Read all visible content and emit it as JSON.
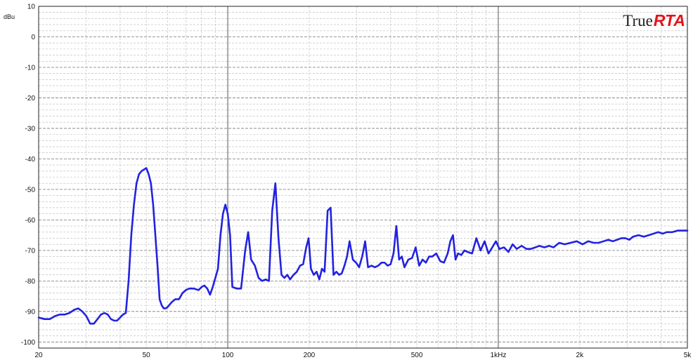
{
  "logo": {
    "part1": "True",
    "part2": "RTA",
    "accent": "#e3151a"
  },
  "chart_data": {
    "type": "line",
    "title": "",
    "xlabel": "",
    "ylabel": "dBu",
    "xscale": "log",
    "xlim": [
      20,
      5000
    ],
    "ylim": [
      -102,
      10
    ],
    "grid": true,
    "x_ticks": [
      {
        "v": 20,
        "label": "20"
      },
      {
        "v": 50,
        "label": "50"
      },
      {
        "v": 100,
        "label": "100"
      },
      {
        "v": 200,
        "label": "200"
      },
      {
        "v": 500,
        "label": "500"
      },
      {
        "v": 1000,
        "label": "1kHz"
      },
      {
        "v": 2000,
        "label": "2k"
      },
      {
        "v": 5000,
        "label": "5k"
      }
    ],
    "y_ticks": [
      10,
      0,
      -10,
      -20,
      -30,
      -40,
      -50,
      -60,
      -70,
      -80,
      -90,
      -100
    ],
    "series_color": "#2222e0",
    "series": [
      {
        "points": [
          [
            20,
            -92
          ],
          [
            21,
            -92.5
          ],
          [
            22,
            -92.5
          ],
          [
            23,
            -91.5
          ],
          [
            24,
            -91
          ],
          [
            25,
            -91
          ],
          [
            26,
            -90.5
          ],
          [
            27,
            -89.5
          ],
          [
            28,
            -89
          ],
          [
            29,
            -90
          ],
          [
            30,
            -91.5
          ],
          [
            31,
            -94
          ],
          [
            32,
            -94
          ],
          [
            33,
            -92.5
          ],
          [
            34,
            -91
          ],
          [
            35,
            -90.5
          ],
          [
            36,
            -91
          ],
          [
            37,
            -92.5
          ],
          [
            38,
            -93
          ],
          [
            39,
            -93
          ],
          [
            40,
            -92
          ],
          [
            41,
            -91
          ],
          [
            42,
            -90.5
          ],
          [
            43,
            -80
          ],
          [
            44,
            -65
          ],
          [
            45,
            -55
          ],
          [
            46,
            -48
          ],
          [
            47,
            -45
          ],
          [
            48,
            -44
          ],
          [
            49,
            -43.5
          ],
          [
            50,
            -43
          ],
          [
            51,
            -45
          ],
          [
            52,
            -48
          ],
          [
            53,
            -55
          ],
          [
            54,
            -65
          ],
          [
            55,
            -75
          ],
          [
            56,
            -86
          ],
          [
            57,
            -88
          ],
          [
            58,
            -89
          ],
          [
            59,
            -89
          ],
          [
            60,
            -88.5
          ],
          [
            62,
            -87
          ],
          [
            64,
            -86
          ],
          [
            66,
            -86
          ],
          [
            68,
            -84
          ],
          [
            70,
            -83
          ],
          [
            72,
            -82.5
          ],
          [
            75,
            -82.5
          ],
          [
            78,
            -83
          ],
          [
            80,
            -82
          ],
          [
            82,
            -81.5
          ],
          [
            84,
            -82.5
          ],
          [
            86,
            -84.5
          ],
          [
            88,
            -82
          ],
          [
            90,
            -79
          ],
          [
            92,
            -76
          ],
          [
            94,
            -65
          ],
          [
            96,
            -58
          ],
          [
            98,
            -55
          ],
          [
            100,
            -58
          ],
          [
            102,
            -65
          ],
          [
            104,
            -82
          ],
          [
            108,
            -82.5
          ],
          [
            112,
            -82.5
          ],
          [
            116,
            -70
          ],
          [
            119,
            -64
          ],
          [
            122,
            -73
          ],
          [
            126,
            -75
          ],
          [
            130,
            -79
          ],
          [
            134,
            -80
          ],
          [
            138,
            -79.5
          ],
          [
            142,
            -80
          ],
          [
            146,
            -57
          ],
          [
            150,
            -48
          ],
          [
            154,
            -66
          ],
          [
            158,
            -78
          ],
          [
            162,
            -79
          ],
          [
            166,
            -78
          ],
          [
            170,
            -79.5
          ],
          [
            175,
            -78
          ],
          [
            180,
            -77
          ],
          [
            185,
            -75
          ],
          [
            190,
            -74.5
          ],
          [
            195,
            -69
          ],
          [
            199,
            -66
          ],
          [
            203,
            -76
          ],
          [
            208,
            -78
          ],
          [
            213,
            -77
          ],
          [
            218,
            -79.5
          ],
          [
            223,
            -76
          ],
          [
            228,
            -77
          ],
          [
            234,
            -57
          ],
          [
            240,
            -56
          ],
          [
            246,
            -78
          ],
          [
            252,
            -77
          ],
          [
            258,
            -78
          ],
          [
            264,
            -77.5
          ],
          [
            270,
            -75
          ],
          [
            276,
            -72
          ],
          [
            282,
            -67
          ],
          [
            290,
            -73
          ],
          [
            298,
            -74
          ],
          [
            306,
            -75.5
          ],
          [
            314,
            -72
          ],
          [
            322,
            -67
          ],
          [
            330,
            -75.5
          ],
          [
            340,
            -75
          ],
          [
            350,
            -75.5
          ],
          [
            360,
            -75
          ],
          [
            370,
            -74
          ],
          [
            380,
            -74
          ],
          [
            390,
            -75
          ],
          [
            400,
            -74.5
          ],
          [
            410,
            -71
          ],
          [
            420,
            -62
          ],
          [
            430,
            -73
          ],
          [
            440,
            -72
          ],
          [
            450,
            -75.5
          ],
          [
            465,
            -73
          ],
          [
            480,
            -72.5
          ],
          [
            495,
            -69
          ],
          [
            510,
            -75
          ],
          [
            525,
            -73
          ],
          [
            540,
            -74
          ],
          [
            555,
            -72
          ],
          [
            570,
            -72
          ],
          [
            590,
            -71
          ],
          [
            610,
            -73.5
          ],
          [
            630,
            -74
          ],
          [
            650,
            -71
          ],
          [
            665,
            -67
          ],
          [
            680,
            -65
          ],
          [
            695,
            -73
          ],
          [
            710,
            -71
          ],
          [
            730,
            -71.5
          ],
          [
            750,
            -70
          ],
          [
            770,
            -70.5
          ],
          [
            800,
            -71
          ],
          [
            830,
            -66
          ],
          [
            860,
            -70
          ],
          [
            890,
            -67
          ],
          [
            920,
            -71
          ],
          [
            950,
            -69
          ],
          [
            980,
            -67
          ],
          [
            1010,
            -69.5
          ],
          [
            1050,
            -69
          ],
          [
            1090,
            -70.5
          ],
          [
            1130,
            -68
          ],
          [
            1170,
            -69.5
          ],
          [
            1220,
            -68.5
          ],
          [
            1270,
            -69.5
          ],
          [
            1320,
            -69.5
          ],
          [
            1370,
            -69
          ],
          [
            1420,
            -68.5
          ],
          [
            1480,
            -69
          ],
          [
            1540,
            -68.5
          ],
          [
            1600,
            -69
          ],
          [
            1680,
            -67.5
          ],
          [
            1760,
            -68
          ],
          [
            1850,
            -67.5
          ],
          [
            1950,
            -67
          ],
          [
            2050,
            -68
          ],
          [
            2150,
            -67
          ],
          [
            2250,
            -67.5
          ],
          [
            2350,
            -67.5
          ],
          [
            2450,
            -67
          ],
          [
            2550,
            -66.5
          ],
          [
            2650,
            -67
          ],
          [
            2750,
            -66.5
          ],
          [
            2850,
            -66
          ],
          [
            2950,
            -66
          ],
          [
            3050,
            -66.5
          ],
          [
            3150,
            -65.5
          ],
          [
            3300,
            -65
          ],
          [
            3450,
            -65.5
          ],
          [
            3600,
            -65
          ],
          [
            3750,
            -64.5
          ],
          [
            3900,
            -64
          ],
          [
            4050,
            -64.5
          ],
          [
            4200,
            -64
          ],
          [
            4400,
            -64
          ],
          [
            4600,
            -63.5
          ],
          [
            4800,
            -63.5
          ],
          [
            5000,
            -63.5
          ]
        ]
      }
    ]
  }
}
